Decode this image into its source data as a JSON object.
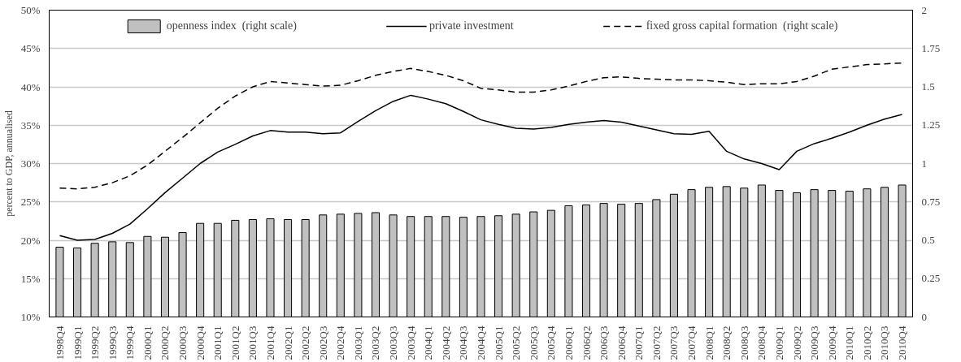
{
  "chart_data": {
    "type": "bar",
    "ylabel": "percent to GDP, annualised",
    "categories": [
      "1998Q4",
      "1999Q1",
      "1999Q2",
      "1999Q3",
      "1999Q4",
      "2000Q1",
      "2000Q2",
      "2000Q3",
      "2000Q4",
      "2001Q1",
      "2001Q2",
      "2001Q3",
      "2001Q4",
      "2002Q1",
      "2002Q2",
      "2002Q3",
      "2002Q4",
      "2003Q1",
      "2003Q2",
      "2003Q3",
      "2003Q4",
      "2004Q1",
      "2004Q2",
      "2004Q3",
      "2004Q4",
      "2005Q1",
      "2005Q2",
      "2005Q3",
      "2005Q4",
      "2006Q1",
      "2006Q2",
      "2006Q3",
      "2006Q4",
      "2007Q1",
      "2007Q2",
      "2007Q3",
      "2007Q4",
      "2008Q1",
      "2008Q2",
      "2008Q3",
      "2008Q4",
      "2009Q1",
      "2009Q2",
      "2009Q3",
      "2009Q4",
      "2010Q1",
      "2010Q2",
      "2010Q3",
      "2010Q4"
    ],
    "series": [
      {
        "name": "openness index  (right scale)",
        "axis": "y2",
        "color": "#c0c0c0",
        "values": [
          0.455,
          0.45,
          0.48,
          0.49,
          0.485,
          0.525,
          0.52,
          0.55,
          0.61,
          0.61,
          0.63,
          0.635,
          0.64,
          0.635,
          0.635,
          0.665,
          0.67,
          0.675,
          0.68,
          0.665,
          0.655,
          0.655,
          0.655,
          0.65,
          0.655,
          0.66,
          0.67,
          0.685,
          0.695,
          0.725,
          0.73,
          0.74,
          0.735,
          0.74,
          0.765,
          0.8,
          0.83,
          0.845,
          0.85,
          0.84,
          0.86,
          0.825,
          0.81,
          0.83,
          0.825,
          0.82,
          0.835,
          0.845,
          0.86
        ]
      },
      {
        "name": "private investment",
        "type": "line",
        "color": "#000000",
        "line_style": "solid",
        "values": [
          20.6,
          20.0,
          20.1,
          20.9,
          22.1,
          24.1,
          26.2,
          28.1,
          30.0,
          31.5,
          32.5,
          33.6,
          34.3,
          34.1,
          34.1,
          33.9,
          34.0,
          35.5,
          36.9,
          38.1,
          38.9,
          38.4,
          37.8,
          36.8,
          35.7,
          35.1,
          34.6,
          34.5,
          34.7,
          35.1,
          35.4,
          35.6,
          35.4,
          34.9,
          34.4,
          33.9,
          33.8,
          34.2,
          31.6,
          30.6,
          30.0,
          29.2,
          31.6,
          32.6,
          33.3,
          34.1,
          35.0,
          35.8,
          36.4
        ]
      },
      {
        "name": "fixed gross capital formation  (right scale)",
        "type": "line",
        "axis": "y2",
        "color": "#000000",
        "line_style": "dashed",
        "values": [
          0.84,
          0.835,
          0.845,
          0.875,
          0.92,
          0.99,
          1.08,
          1.17,
          1.265,
          1.36,
          1.44,
          1.5,
          1.535,
          1.525,
          1.515,
          1.505,
          1.51,
          1.54,
          1.575,
          1.6,
          1.62,
          1.6,
          1.575,
          1.54,
          1.49,
          1.48,
          1.465,
          1.465,
          1.48,
          1.505,
          1.535,
          1.56,
          1.565,
          1.555,
          1.55,
          1.545,
          1.545,
          1.54,
          1.53,
          1.515,
          1.52,
          1.52,
          1.535,
          1.57,
          1.615,
          1.63,
          1.645,
          1.65,
          1.655
        ]
      }
    ],
    "ylim": [
      10,
      50
    ],
    "yticks": [
      {
        "value": 10,
        "label": "10%"
      },
      {
        "value": 15,
        "label": "15%"
      },
      {
        "value": 20,
        "label": "20%"
      },
      {
        "value": 25,
        "label": "25%"
      },
      {
        "value": 30,
        "label": "30%"
      },
      {
        "value": 35,
        "label": "35%"
      },
      {
        "value": 40,
        "label": "40%"
      },
      {
        "value": 45,
        "label": "45%"
      },
      {
        "value": 50,
        "label": "50%"
      }
    ],
    "y2lim": [
      0,
      2
    ],
    "y2ticks": [
      0,
      0.25,
      0.5,
      0.75,
      1,
      1.25,
      1.5,
      1.75,
      2
    ],
    "grid": "y",
    "legend": "top"
  }
}
